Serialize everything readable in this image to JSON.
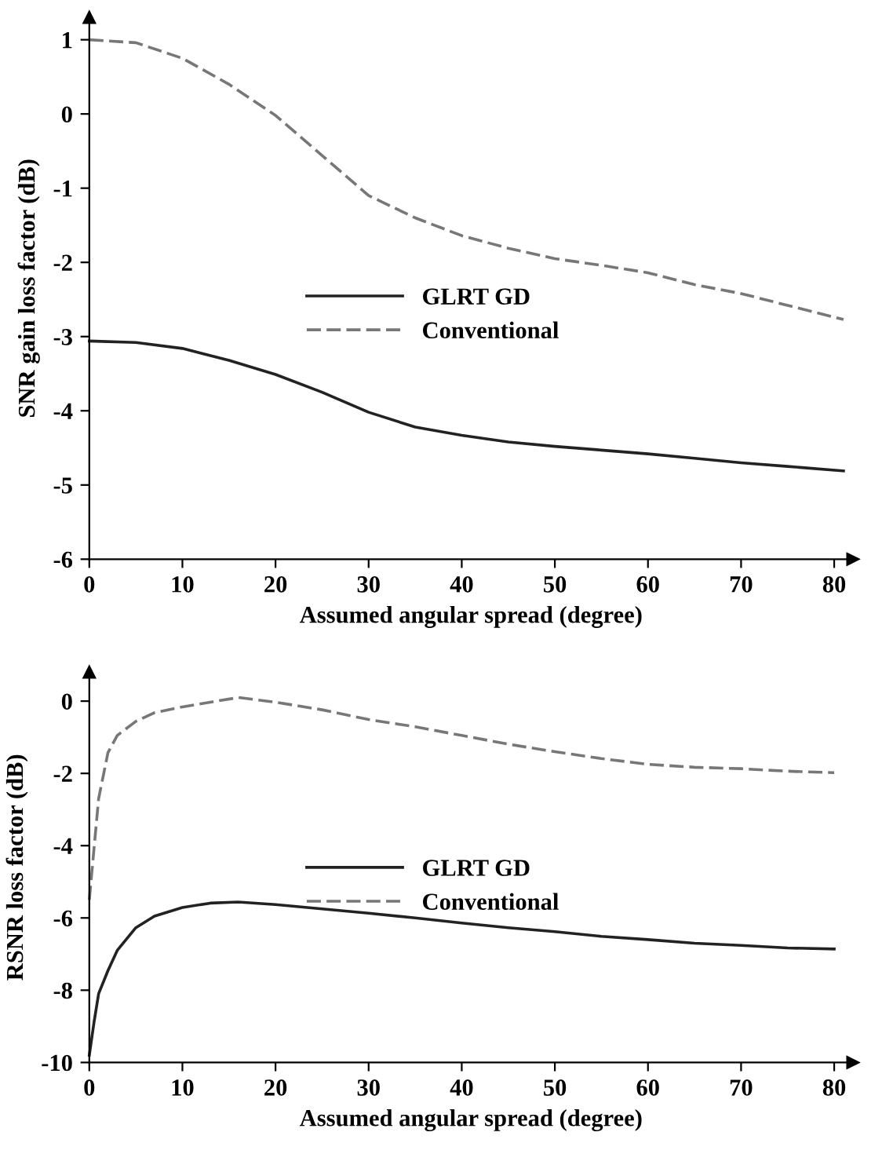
{
  "chart_data": [
    {
      "type": "line",
      "xlabel": "Assumed angular spread (degree)",
      "ylabel": "SNR gain loss factor (dB)",
      "xlim": [
        0,
        82
      ],
      "ylim": [
        -6,
        1.3
      ],
      "xticks": [
        0,
        10,
        20,
        30,
        40,
        50,
        60,
        70,
        80
      ],
      "yticks": [
        -6,
        -5,
        -4,
        -3,
        -2,
        -1,
        0,
        1
      ],
      "grid": false,
      "legend": "center",
      "marker": "none",
      "series": [
        {
          "name": "GLRT GD",
          "color": "#222222",
          "line_style": "solid",
          "x": [
            0,
            5,
            10,
            15,
            20,
            25,
            30,
            35,
            40,
            45,
            50,
            55,
            60,
            65,
            70,
            75,
            81
          ],
          "values": [
            -3.06,
            -3.08,
            -3.16,
            -3.32,
            -3.51,
            -3.75,
            -4.02,
            -4.22,
            -4.33,
            -4.42,
            -4.48,
            -4.53,
            -4.58,
            -4.64,
            -4.7,
            -4.75,
            -4.81
          ]
        },
        {
          "name": "Conventional",
          "color": "#777777",
          "line_style": "dashed",
          "x": [
            0,
            5,
            10,
            15,
            20,
            25,
            30,
            35,
            40,
            45,
            50,
            55,
            60,
            65,
            70,
            75,
            81
          ],
          "values": [
            1.0,
            0.96,
            0.75,
            0.4,
            -0.02,
            -0.56,
            -1.1,
            -1.4,
            -1.64,
            -1.81,
            -1.95,
            -2.04,
            -2.14,
            -2.3,
            -2.42,
            -2.58,
            -2.77
          ]
        }
      ]
    },
    {
      "type": "line",
      "xlabel": "Assumed angular spread (degree)",
      "ylabel": "RSNR loss factor (dB)",
      "xlim": [
        0,
        82
      ],
      "ylim": [
        -10,
        0.8
      ],
      "xticks": [
        0,
        10,
        20,
        30,
        40,
        50,
        60,
        70,
        80
      ],
      "yticks": [
        -10,
        -8,
        -6,
        -4,
        -2,
        0
      ],
      "grid": false,
      "legend": "center",
      "marker": "none",
      "series": [
        {
          "name": "GLRT GD",
          "color": "#222222",
          "line_style": "solid",
          "x": [
            0,
            0.5,
            1,
            2,
            3,
            5,
            7,
            10,
            13,
            16,
            20,
            25,
            30,
            35,
            40,
            45,
            50,
            55,
            60,
            65,
            70,
            75,
            80
          ],
          "values": [
            -9.8,
            -8.9,
            -8.1,
            -7.46,
            -6.9,
            -6.27,
            -5.95,
            -5.71,
            -5.59,
            -5.56,
            -5.63,
            -5.75,
            -5.87,
            -6.0,
            -6.14,
            -6.27,
            -6.38,
            -6.51,
            -6.6,
            -6.7,
            -6.76,
            -6.83,
            -6.86
          ]
        },
        {
          "name": "Conventional",
          "color": "#777777",
          "line_style": "dashed",
          "x": [
            0,
            1,
            2,
            3,
            5,
            7,
            10,
            13,
            16,
            20,
            25,
            30,
            35,
            40,
            45,
            50,
            55,
            60,
            65,
            70,
            75,
            80
          ],
          "values": [
            -5.5,
            -2.7,
            -1.43,
            -0.95,
            -0.56,
            -0.32,
            -0.16,
            -0.03,
            0.1,
            -0.03,
            -0.24,
            -0.51,
            -0.71,
            -0.95,
            -1.19,
            -1.4,
            -1.59,
            -1.75,
            -1.83,
            -1.87,
            -1.94,
            -1.98
          ]
        }
      ]
    }
  ]
}
